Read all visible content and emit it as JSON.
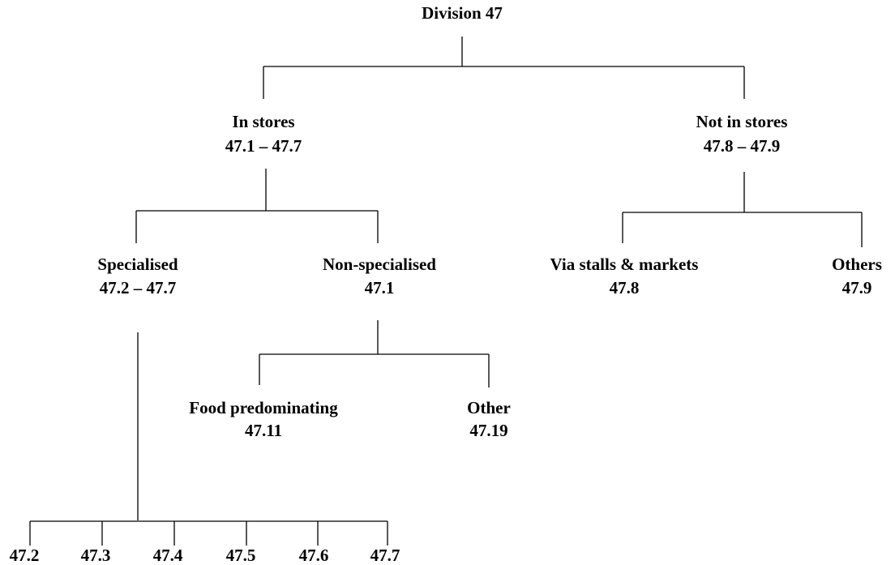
{
  "root": "Division 47",
  "nodes": [
    {
      "label": "In stores",
      "code": "47.1 – 47.7"
    },
    {
      "label": "Not in stores",
      "code": "47.8 – 47.9"
    },
    {
      "label": "Specialised",
      "code": "47.2 – 47.7"
    },
    {
      "label": "Non-specialised",
      "code": "47.1"
    },
    {
      "label": "Via stalls & markets",
      "code": "47.8"
    },
    {
      "label": "Others",
      "code": "47.9"
    },
    {
      "label": "Food predominating",
      "code": "47.11"
    },
    {
      "label": "Other",
      "code": "47.19"
    }
  ],
  "leaves": [
    "47.2",
    "47.3",
    "47.4",
    "47.5",
    "47.6",
    "47.7"
  ]
}
